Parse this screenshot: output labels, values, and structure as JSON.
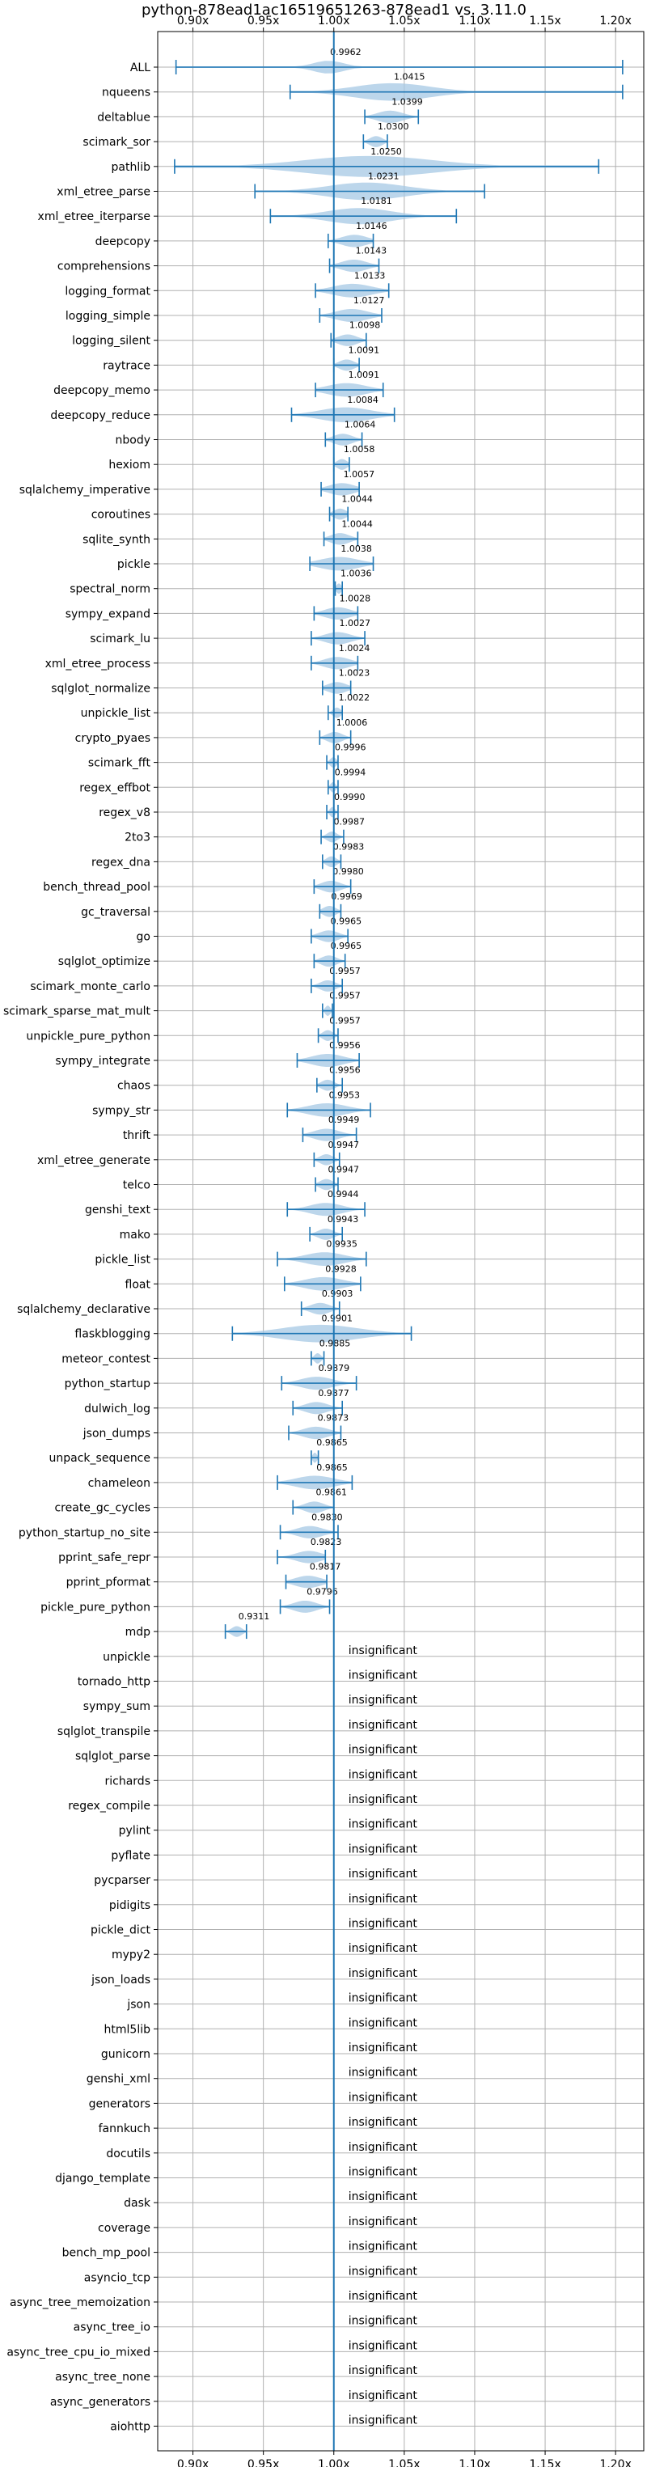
{
  "chart_data": {
    "type": "violin",
    "title": "python-878ead1ac16519651263-878ead1 vs. 3.11.0",
    "xlim": [
      0.875,
      1.22
    ],
    "xticks": [
      0.9,
      0.95,
      1.0,
      1.05,
      1.1,
      1.15,
      1.2
    ],
    "xtick_labels": [
      "0.90x",
      "0.95x",
      "1.00x",
      "1.05x",
      "1.10x",
      "1.15x",
      "1.20x"
    ],
    "reference_line": 1.0,
    "grid": true,
    "insignificant_label": "insignificant",
    "benchmarks": [
      {
        "name": "ALL",
        "median": 0.9962,
        "label": "0.9962",
        "min": 0.888,
        "max": 1.205,
        "spread": 0.024
      },
      {
        "name": "nqueens",
        "median": 1.0415,
        "label": "1.0415",
        "min": 0.969,
        "max": 1.205,
        "spread": 0.06
      },
      {
        "name": "deltablue",
        "median": 1.0399,
        "label": "1.0399",
        "min": 1.022,
        "max": 1.06,
        "spread": 0.02
      },
      {
        "name": "scimark_sor",
        "median": 1.03,
        "label": "1.0300",
        "min": 1.021,
        "max": 1.038,
        "spread": 0.01
      },
      {
        "name": "pathlib",
        "median": 1.025,
        "label": "1.0250",
        "min": 0.887,
        "max": 1.188,
        "spread": 0.1
      },
      {
        "name": "xml_etree_parse",
        "median": 1.0231,
        "label": "1.0231",
        "min": 0.944,
        "max": 1.107,
        "spread": 0.06
      },
      {
        "name": "xml_etree_iterparse",
        "median": 1.0181,
        "label": "1.0181",
        "min": 0.955,
        "max": 1.087,
        "spread": 0.05
      },
      {
        "name": "deepcopy",
        "median": 1.0146,
        "label": "1.0146",
        "min": 0.996,
        "max": 1.028,
        "spread": 0.02
      },
      {
        "name": "comprehensions",
        "median": 1.0143,
        "label": "1.0143",
        "min": 0.997,
        "max": 1.032,
        "spread": 0.02
      },
      {
        "name": "logging_format",
        "median": 1.0133,
        "label": "1.0133",
        "min": 0.987,
        "max": 1.039,
        "spread": 0.03
      },
      {
        "name": "logging_simple",
        "median": 1.0127,
        "label": "1.0127",
        "min": 0.99,
        "max": 1.034,
        "spread": 0.025
      },
      {
        "name": "logging_silent",
        "median": 1.0098,
        "label": "1.0098",
        "min": 0.998,
        "max": 1.023,
        "spread": 0.015
      },
      {
        "name": "raytrace",
        "median": 1.0091,
        "label": "1.0091",
        "min": 1.0,
        "max": 1.018,
        "spread": 0.012
      },
      {
        "name": "deepcopy_memo",
        "median": 1.0091,
        "label": "1.0091",
        "min": 0.987,
        "max": 1.035,
        "spread": 0.03
      },
      {
        "name": "deepcopy_reduce",
        "median": 1.0084,
        "label": "1.0084",
        "min": 0.97,
        "max": 1.043,
        "spread": 0.04
      },
      {
        "name": "nbody",
        "median": 1.0064,
        "label": "1.0064",
        "min": 0.994,
        "max": 1.02,
        "spread": 0.015
      },
      {
        "name": "hexiom",
        "median": 1.0058,
        "label": "1.0058",
        "min": 1.0,
        "max": 1.011,
        "spread": 0.008
      },
      {
        "name": "sqlalchemy_imperative",
        "median": 1.0057,
        "label": "1.0057",
        "min": 0.991,
        "max": 1.018,
        "spread": 0.02
      },
      {
        "name": "coroutines",
        "median": 1.0044,
        "label": "1.0044",
        "min": 0.997,
        "max": 1.01,
        "spread": 0.01
      },
      {
        "name": "sqlite_synth",
        "median": 1.0044,
        "label": "1.0044",
        "min": 0.993,
        "max": 1.017,
        "spread": 0.015
      },
      {
        "name": "pickle",
        "median": 1.0038,
        "label": "1.0038",
        "min": 0.983,
        "max": 1.028,
        "spread": 0.03
      },
      {
        "name": "spectral_norm",
        "median": 1.0036,
        "label": "1.0036",
        "min": 1.001,
        "max": 1.006,
        "spread": 0.004
      },
      {
        "name": "sympy_expand",
        "median": 1.0028,
        "label": "1.0028",
        "min": 0.986,
        "max": 1.017,
        "spread": 0.02
      },
      {
        "name": "scimark_lu",
        "median": 1.0027,
        "label": "1.0027",
        "min": 0.984,
        "max": 1.022,
        "spread": 0.02
      },
      {
        "name": "xml_etree_process",
        "median": 1.0024,
        "label": "1.0024",
        "min": 0.984,
        "max": 1.017,
        "spread": 0.02
      },
      {
        "name": "sqlglot_normalize",
        "median": 1.0023,
        "label": "1.0023",
        "min": 0.992,
        "max": 1.012,
        "spread": 0.015
      },
      {
        "name": "unpickle_list",
        "median": 1.0022,
        "label": "1.0022",
        "min": 0.996,
        "max": 1.006,
        "spread": 0.006
      },
      {
        "name": "crypto_pyaes",
        "median": 1.0006,
        "label": "1.0006",
        "min": 0.99,
        "max": 1.012,
        "spread": 0.012
      },
      {
        "name": "scimark_fft",
        "median": 0.9996,
        "label": "0.9996",
        "min": 0.995,
        "max": 1.003,
        "spread": 0.005
      },
      {
        "name": "regex_effbot",
        "median": 0.9994,
        "label": "0.9994",
        "min": 0.996,
        "max": 1.003,
        "spread": 0.004
      },
      {
        "name": "regex_v8",
        "median": 0.999,
        "label": "0.9990",
        "min": 0.995,
        "max": 1.003,
        "spread": 0.004
      },
      {
        "name": "2to3",
        "median": 0.9987,
        "label": "0.9987",
        "min": 0.991,
        "max": 1.007,
        "spread": 0.008
      },
      {
        "name": "regex_dna",
        "median": 0.9983,
        "label": "0.9983",
        "min": 0.992,
        "max": 1.005,
        "spread": 0.008
      },
      {
        "name": "bench_thread_pool",
        "median": 0.998,
        "label": "0.9980",
        "min": 0.986,
        "max": 1.012,
        "spread": 0.015
      },
      {
        "name": "gc_traversal",
        "median": 0.9969,
        "label": "0.9969",
        "min": 0.99,
        "max": 1.005,
        "spread": 0.01
      },
      {
        "name": "go",
        "median": 0.9965,
        "label": "0.9965",
        "min": 0.984,
        "max": 1.01,
        "spread": 0.015
      },
      {
        "name": "sqlglot_optimize",
        "median": 0.9965,
        "label": "0.9965",
        "min": 0.986,
        "max": 1.008,
        "spread": 0.012
      },
      {
        "name": "scimark_monte_carlo",
        "median": 0.9957,
        "label": "0.9957",
        "min": 0.984,
        "max": 1.006,
        "spread": 0.012
      },
      {
        "name": "scimark_sparse_mat_mult",
        "median": 0.9957,
        "label": "0.9957",
        "min": 0.992,
        "max": 0.999,
        "spread": 0.004
      },
      {
        "name": "unpickle_pure_python",
        "median": 0.9957,
        "label": "0.9957",
        "min": 0.989,
        "max": 1.003,
        "spread": 0.008
      },
      {
        "name": "sympy_integrate",
        "median": 0.9956,
        "label": "0.9956",
        "min": 0.974,
        "max": 1.018,
        "spread": 0.025
      },
      {
        "name": "chaos",
        "median": 0.9956,
        "label": "0.9956",
        "min": 0.988,
        "max": 1.006,
        "spread": 0.01
      },
      {
        "name": "sympy_str",
        "median": 0.9953,
        "label": "0.9953",
        "min": 0.967,
        "max": 1.026,
        "spread": 0.03
      },
      {
        "name": "thrift",
        "median": 0.9949,
        "label": "0.9949",
        "min": 0.978,
        "max": 1.016,
        "spread": 0.02
      },
      {
        "name": "xml_etree_generate",
        "median": 0.9947,
        "label": "0.9947",
        "min": 0.986,
        "max": 1.004,
        "spread": 0.01
      },
      {
        "name": "telco",
        "median": 0.9947,
        "label": "0.9947",
        "min": 0.987,
        "max": 1.003,
        "spread": 0.01
      },
      {
        "name": "genshi_text",
        "median": 0.9944,
        "label": "0.9944",
        "min": 0.967,
        "max": 1.022,
        "spread": 0.025
      },
      {
        "name": "mako",
        "median": 0.9943,
        "label": "0.9943",
        "min": 0.983,
        "max": 1.006,
        "spread": 0.012
      },
      {
        "name": "pickle_list",
        "median": 0.9935,
        "label": "0.9935",
        "min": 0.96,
        "max": 1.023,
        "spread": 0.03
      },
      {
        "name": "float",
        "median": 0.9928,
        "label": "0.9928",
        "min": 0.965,
        "max": 1.019,
        "spread": 0.03
      },
      {
        "name": "sqlalchemy_declarative",
        "median": 0.9903,
        "label": "0.9903",
        "min": 0.977,
        "max": 1.004,
        "spread": 0.015
      },
      {
        "name": "flaskblogging",
        "median": 0.9901,
        "label": "0.9901",
        "min": 0.928,
        "max": 1.055,
        "spread": 0.06
      },
      {
        "name": "meteor_contest",
        "median": 0.9885,
        "label": "0.9885",
        "min": 0.984,
        "max": 0.993,
        "spread": 0.005
      },
      {
        "name": "python_startup",
        "median": 0.9879,
        "label": "0.9879",
        "min": 0.963,
        "max": 1.016,
        "spread": 0.025
      },
      {
        "name": "dulwich_log",
        "median": 0.9877,
        "label": "0.9877",
        "min": 0.971,
        "max": 1.006,
        "spread": 0.018
      },
      {
        "name": "json_dumps",
        "median": 0.9873,
        "label": "0.9873",
        "min": 0.968,
        "max": 1.005,
        "spread": 0.02
      },
      {
        "name": "unpack_sequence",
        "median": 0.9865,
        "label": "0.9865",
        "min": 0.984,
        "max": 0.989,
        "spread": 0.003
      },
      {
        "name": "chameleon",
        "median": 0.9865,
        "label": "0.9865",
        "min": 0.96,
        "max": 1.013,
        "spread": 0.03
      },
      {
        "name": "create_gc_cycles",
        "median": 0.9861,
        "label": "0.9861",
        "min": 0.971,
        "max": 1.0,
        "spread": 0.015
      },
      {
        "name": "python_startup_no_site",
        "median": 0.983,
        "label": "0.9830",
        "min": 0.962,
        "max": 1.003,
        "spread": 0.02
      },
      {
        "name": "pprint_safe_repr",
        "median": 0.9823,
        "label": "0.9823",
        "min": 0.96,
        "max": 0.994,
        "spread": 0.02
      },
      {
        "name": "pprint_pformat",
        "median": 0.9817,
        "label": "0.9817",
        "min": 0.966,
        "max": 0.995,
        "spread": 0.02
      },
      {
        "name": "pickle_pure_python",
        "median": 0.9796,
        "label": "0.9796",
        "min": 0.962,
        "max": 0.997,
        "spread": 0.018
      },
      {
        "name": "mdp",
        "median": 0.9311,
        "label": "0.9311",
        "min": 0.923,
        "max": 0.938,
        "spread": 0.008
      },
      {
        "name": "unpickle",
        "insignificant": true
      },
      {
        "name": "tornado_http",
        "insignificant": true
      },
      {
        "name": "sympy_sum",
        "insignificant": true
      },
      {
        "name": "sqlglot_transpile",
        "insignificant": true
      },
      {
        "name": "sqlglot_parse",
        "insignificant": true
      },
      {
        "name": "richards",
        "insignificant": true
      },
      {
        "name": "regex_compile",
        "insignificant": true
      },
      {
        "name": "pylint",
        "insignificant": true
      },
      {
        "name": "pyflate",
        "insignificant": true
      },
      {
        "name": "pycparser",
        "insignificant": true
      },
      {
        "name": "pidigits",
        "insignificant": true
      },
      {
        "name": "pickle_dict",
        "insignificant": true
      },
      {
        "name": "mypy2",
        "insignificant": true
      },
      {
        "name": "json_loads",
        "insignificant": true
      },
      {
        "name": "json",
        "insignificant": true
      },
      {
        "name": "html5lib",
        "insignificant": true
      },
      {
        "name": "gunicorn",
        "insignificant": true
      },
      {
        "name": "genshi_xml",
        "insignificant": true
      },
      {
        "name": "generators",
        "insignificant": true
      },
      {
        "name": "fannkuch",
        "insignificant": true
      },
      {
        "name": "docutils",
        "insignificant": true
      },
      {
        "name": "django_template",
        "insignificant": true
      },
      {
        "name": "dask",
        "insignificant": true
      },
      {
        "name": "coverage",
        "insignificant": true
      },
      {
        "name": "bench_mp_pool",
        "insignificant": true
      },
      {
        "name": "asyncio_tcp",
        "insignificant": true
      },
      {
        "name": "async_tree_memoization",
        "insignificant": true
      },
      {
        "name": "async_tree_io",
        "insignificant": true
      },
      {
        "name": "async_tree_cpu_io_mixed",
        "insignificant": true
      },
      {
        "name": "async_tree_none",
        "insignificant": true
      },
      {
        "name": "async_generators",
        "insignificant": true
      },
      {
        "name": "aiohttp",
        "insignificant": true
      }
    ]
  },
  "colors": {
    "violin": "#a6c8e4",
    "line": "#1f77b4",
    "grid": "#b0b0b0",
    "axis": "#000000"
  }
}
